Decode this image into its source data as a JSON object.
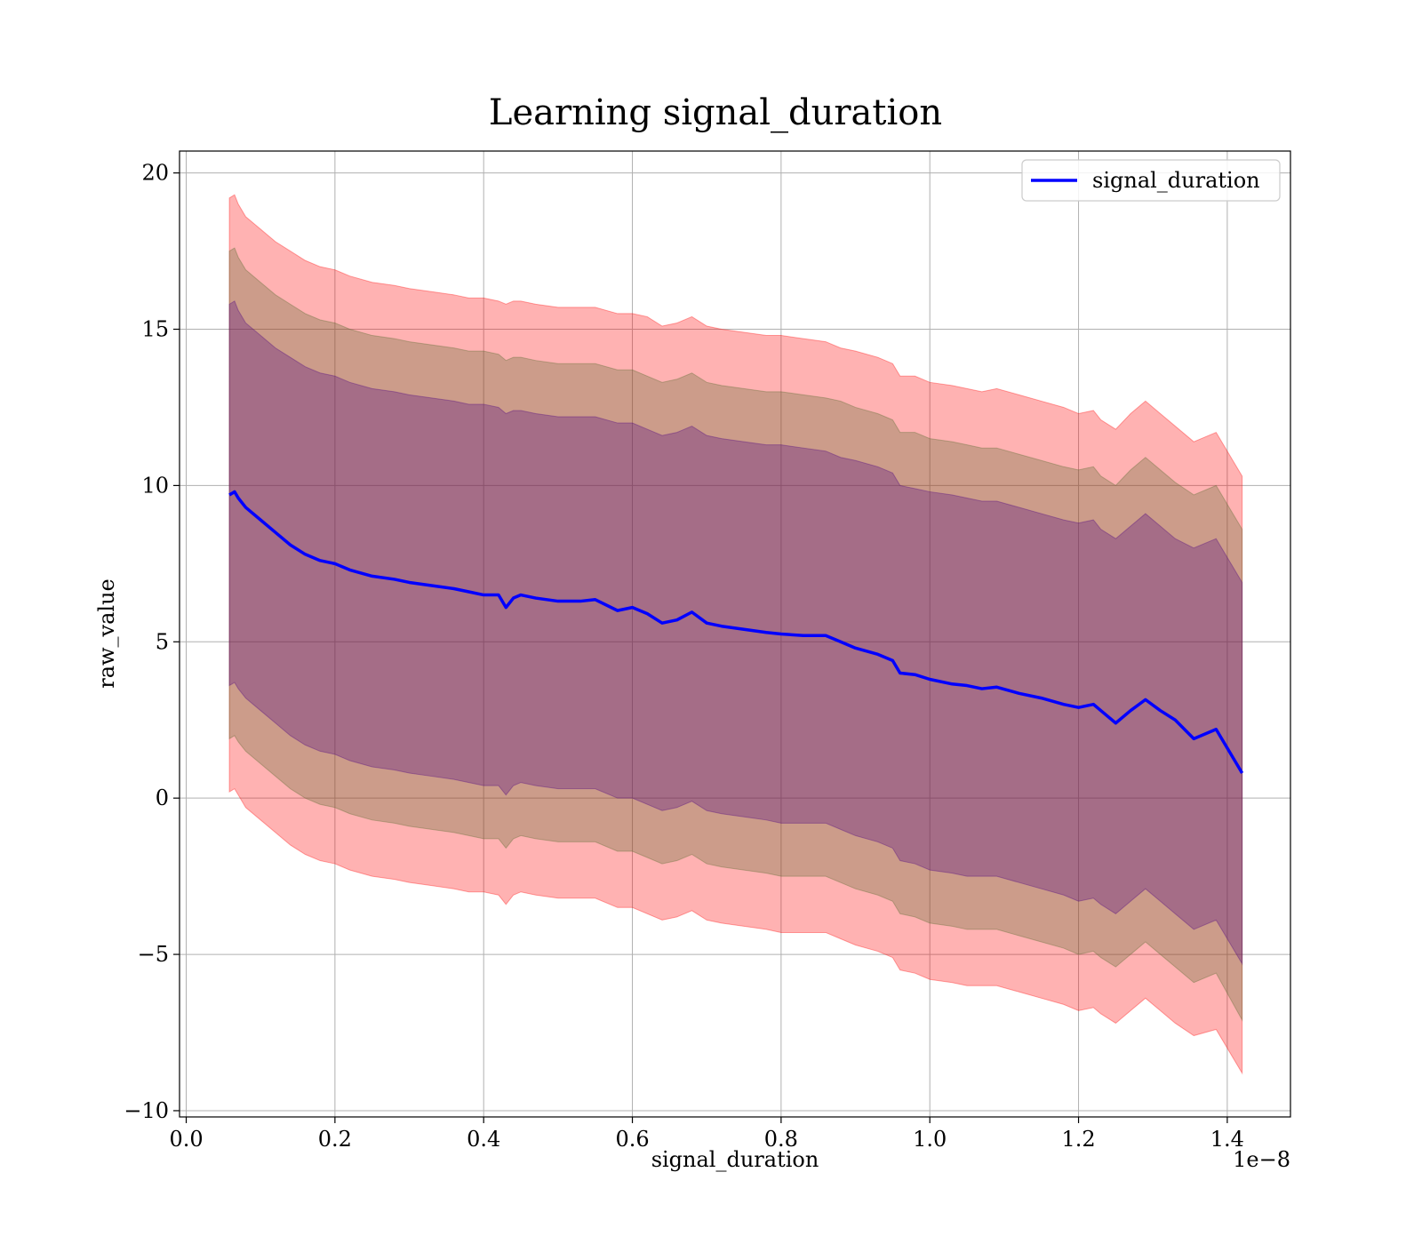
{
  "chart_data": {
    "type": "line",
    "title": "Learning signal_duration",
    "xlabel": "signal_duration",
    "ylabel": "raw_value",
    "x_offset_label": "1e−8",
    "xlim": [
      -0.009,
      1.485
    ],
    "ylim": [
      -10.2,
      20.7
    ],
    "x_ticks": [
      0.0,
      0.2,
      0.4,
      0.6,
      0.8,
      1.0,
      1.2,
      1.4
    ],
    "x_tick_labels": [
      "0.0",
      "0.2",
      "0.4",
      "0.6",
      "0.8",
      "1.0",
      "1.2",
      "1.4"
    ],
    "y_ticks": [
      -10,
      -5,
      0,
      5,
      10,
      15,
      20
    ],
    "y_tick_labels": [
      "−10",
      "−5",
      "0",
      "5",
      "10",
      "15",
      "20"
    ],
    "grid": true,
    "legend_position": "top-right",
    "series": [
      {
        "name": "signal_duration",
        "color": "#0000ff",
        "x": [
          0.058,
          0.065,
          0.07,
          0.08,
          0.1,
          0.12,
          0.14,
          0.16,
          0.18,
          0.2,
          0.22,
          0.25,
          0.28,
          0.3,
          0.33,
          0.36,
          0.38,
          0.4,
          0.42,
          0.43,
          0.44,
          0.45,
          0.47,
          0.5,
          0.53,
          0.55,
          0.58,
          0.6,
          0.62,
          0.64,
          0.66,
          0.68,
          0.7,
          0.72,
          0.75,
          0.78,
          0.8,
          0.83,
          0.86,
          0.88,
          0.9,
          0.93,
          0.95,
          0.96,
          0.98,
          1.0,
          1.03,
          1.05,
          1.07,
          1.09,
          1.12,
          1.15,
          1.18,
          1.2,
          1.22,
          1.23,
          1.25,
          1.27,
          1.29,
          1.31,
          1.33,
          1.355,
          1.385,
          1.42
        ],
        "y": [
          9.7,
          9.8,
          9.6,
          9.3,
          8.9,
          8.5,
          8.1,
          7.8,
          7.6,
          7.5,
          7.3,
          7.1,
          7.0,
          6.9,
          6.8,
          6.7,
          6.6,
          6.5,
          6.5,
          6.1,
          6.4,
          6.5,
          6.4,
          6.3,
          6.3,
          6.35,
          6.0,
          6.1,
          5.9,
          5.6,
          5.7,
          5.95,
          5.6,
          5.5,
          5.4,
          5.3,
          5.25,
          5.2,
          5.2,
          5.0,
          4.8,
          4.6,
          4.4,
          4.0,
          3.95,
          3.8,
          3.65,
          3.6,
          3.5,
          3.55,
          3.35,
          3.2,
          3.0,
          2.9,
          3.0,
          2.8,
          2.4,
          2.8,
          3.15,
          2.8,
          2.5,
          1.9,
          2.2,
          0.8
        ]
      }
    ],
    "bands": [
      {
        "color": "#ff0000",
        "opacity": 0.3,
        "x": [
          0.058,
          0.065,
          0.07,
          0.08,
          0.1,
          0.12,
          0.14,
          0.16,
          0.18,
          0.2,
          0.22,
          0.25,
          0.28,
          0.3,
          0.33,
          0.36,
          0.38,
          0.4,
          0.42,
          0.43,
          0.44,
          0.45,
          0.47,
          0.5,
          0.53,
          0.55,
          0.58,
          0.6,
          0.62,
          0.64,
          0.66,
          0.68,
          0.7,
          0.72,
          0.75,
          0.78,
          0.8,
          0.83,
          0.86,
          0.88,
          0.9,
          0.93,
          0.95,
          0.96,
          0.98,
          1.0,
          1.03,
          1.05,
          1.07,
          1.09,
          1.12,
          1.15,
          1.18,
          1.2,
          1.22,
          1.23,
          1.25,
          1.27,
          1.29,
          1.31,
          1.33,
          1.355,
          1.385,
          1.42
        ],
        "upper": [
          19.2,
          19.3,
          19.0,
          18.6,
          18.2,
          17.8,
          17.5,
          17.2,
          17.0,
          16.9,
          16.7,
          16.5,
          16.4,
          16.3,
          16.2,
          16.1,
          16.0,
          16.0,
          15.9,
          15.8,
          15.9,
          15.9,
          15.8,
          15.7,
          15.7,
          15.7,
          15.5,
          15.5,
          15.4,
          15.1,
          15.2,
          15.4,
          15.1,
          15.0,
          14.9,
          14.8,
          14.8,
          14.7,
          14.6,
          14.4,
          14.3,
          14.1,
          13.9,
          13.5,
          13.5,
          13.3,
          13.2,
          13.1,
          13.0,
          13.1,
          12.9,
          12.7,
          12.5,
          12.3,
          12.4,
          12.1,
          11.8,
          12.3,
          12.7,
          12.3,
          11.9,
          11.4,
          11.7,
          10.3
        ],
        "lower": [
          0.2,
          0.3,
          0.1,
          -0.3,
          -0.7,
          -1.1,
          -1.5,
          -1.8,
          -2.0,
          -2.1,
          -2.3,
          -2.5,
          -2.6,
          -2.7,
          -2.8,
          -2.9,
          -3.0,
          -3.0,
          -3.1,
          -3.4,
          -3.1,
          -3.0,
          -3.1,
          -3.2,
          -3.2,
          -3.2,
          -3.5,
          -3.5,
          -3.7,
          -3.9,
          -3.8,
          -3.6,
          -3.9,
          -4.0,
          -4.1,
          -4.2,
          -4.3,
          -4.3,
          -4.3,
          -4.5,
          -4.7,
          -4.9,
          -5.1,
          -5.5,
          -5.6,
          -5.8,
          -5.9,
          -6.0,
          -6.0,
          -6.0,
          -6.2,
          -6.4,
          -6.6,
          -6.8,
          -6.7,
          -6.9,
          -7.2,
          -6.8,
          -6.4,
          -6.8,
          -7.2,
          -7.6,
          -7.4,
          -8.8
        ]
      },
      {
        "color": "#556b2f",
        "opacity": 0.3,
        "x": [
          0.058,
          0.065,
          0.07,
          0.08,
          0.1,
          0.12,
          0.14,
          0.16,
          0.18,
          0.2,
          0.22,
          0.25,
          0.28,
          0.3,
          0.33,
          0.36,
          0.38,
          0.4,
          0.42,
          0.43,
          0.44,
          0.45,
          0.47,
          0.5,
          0.53,
          0.55,
          0.58,
          0.6,
          0.62,
          0.64,
          0.66,
          0.68,
          0.7,
          0.72,
          0.75,
          0.78,
          0.8,
          0.83,
          0.86,
          0.88,
          0.9,
          0.93,
          0.95,
          0.96,
          0.98,
          1.0,
          1.03,
          1.05,
          1.07,
          1.09,
          1.12,
          1.15,
          1.18,
          1.2,
          1.22,
          1.23,
          1.25,
          1.27,
          1.29,
          1.31,
          1.33,
          1.355,
          1.385,
          1.42
        ],
        "upper": [
          17.5,
          17.6,
          17.3,
          16.9,
          16.5,
          16.1,
          15.8,
          15.5,
          15.3,
          15.2,
          15.0,
          14.8,
          14.7,
          14.6,
          14.5,
          14.4,
          14.3,
          14.3,
          14.2,
          14.0,
          14.1,
          14.1,
          14.0,
          13.9,
          13.9,
          13.9,
          13.7,
          13.7,
          13.5,
          13.3,
          13.4,
          13.6,
          13.3,
          13.2,
          13.1,
          13.0,
          13.0,
          12.9,
          12.8,
          12.7,
          12.5,
          12.3,
          12.1,
          11.7,
          11.7,
          11.5,
          11.4,
          11.3,
          11.2,
          11.2,
          11.0,
          10.8,
          10.6,
          10.5,
          10.6,
          10.3,
          10.0,
          10.5,
          10.9,
          10.5,
          10.1,
          9.7,
          10.0,
          8.6
        ],
        "lower": [
          1.9,
          2.0,
          1.8,
          1.5,
          1.1,
          0.7,
          0.3,
          0.0,
          -0.2,
          -0.3,
          -0.5,
          -0.7,
          -0.8,
          -0.9,
          -1.0,
          -1.1,
          -1.2,
          -1.3,
          -1.3,
          -1.6,
          -1.3,
          -1.2,
          -1.3,
          -1.4,
          -1.4,
          -1.4,
          -1.7,
          -1.7,
          -1.9,
          -2.1,
          -2.0,
          -1.8,
          -2.1,
          -2.2,
          -2.3,
          -2.4,
          -2.5,
          -2.5,
          -2.5,
          -2.7,
          -2.9,
          -3.1,
          -3.3,
          -3.7,
          -3.8,
          -4.0,
          -4.1,
          -4.2,
          -4.2,
          -4.2,
          -4.4,
          -4.6,
          -4.8,
          -5.0,
          -4.9,
          -5.1,
          -5.4,
          -5.0,
          -4.6,
          -5.0,
          -5.4,
          -5.9,
          -5.6,
          -7.1
        ]
      },
      {
        "color": "#4b0082",
        "opacity": 0.3,
        "x": [
          0.058,
          0.065,
          0.07,
          0.08,
          0.1,
          0.12,
          0.14,
          0.16,
          0.18,
          0.2,
          0.22,
          0.25,
          0.28,
          0.3,
          0.33,
          0.36,
          0.38,
          0.4,
          0.42,
          0.43,
          0.44,
          0.45,
          0.47,
          0.5,
          0.53,
          0.55,
          0.58,
          0.6,
          0.62,
          0.64,
          0.66,
          0.68,
          0.7,
          0.72,
          0.75,
          0.78,
          0.8,
          0.83,
          0.86,
          0.88,
          0.9,
          0.93,
          0.95,
          0.96,
          0.98,
          1.0,
          1.03,
          1.05,
          1.07,
          1.09,
          1.12,
          1.15,
          1.18,
          1.2,
          1.22,
          1.23,
          1.25,
          1.27,
          1.29,
          1.31,
          1.33,
          1.355,
          1.385,
          1.42
        ],
        "upper": [
          15.8,
          15.9,
          15.6,
          15.2,
          14.8,
          14.4,
          14.1,
          13.8,
          13.6,
          13.5,
          13.3,
          13.1,
          13.0,
          12.9,
          12.8,
          12.7,
          12.6,
          12.6,
          12.5,
          12.3,
          12.4,
          12.4,
          12.3,
          12.2,
          12.2,
          12.2,
          12.0,
          12.0,
          11.8,
          11.6,
          11.7,
          11.9,
          11.6,
          11.5,
          11.4,
          11.3,
          11.3,
          11.2,
          11.1,
          10.9,
          10.8,
          10.6,
          10.4,
          10.0,
          9.9,
          9.8,
          9.7,
          9.6,
          9.5,
          9.5,
          9.3,
          9.1,
          8.9,
          8.8,
          8.9,
          8.6,
          8.3,
          8.7,
          9.1,
          8.7,
          8.3,
          8.0,
          8.3,
          6.9
        ],
        "lower": [
          3.6,
          3.7,
          3.5,
          3.2,
          2.8,
          2.4,
          2.0,
          1.7,
          1.5,
          1.4,
          1.2,
          1.0,
          0.9,
          0.8,
          0.7,
          0.6,
          0.5,
          0.4,
          0.4,
          0.1,
          0.4,
          0.5,
          0.4,
          0.3,
          0.3,
          0.3,
          0.0,
          0.0,
          -0.2,
          -0.4,
          -0.3,
          -0.1,
          -0.4,
          -0.5,
          -0.6,
          -0.7,
          -0.8,
          -0.8,
          -0.8,
          -1.0,
          -1.2,
          -1.4,
          -1.6,
          -2.0,
          -2.1,
          -2.3,
          -2.4,
          -2.5,
          -2.5,
          -2.5,
          -2.7,
          -2.9,
          -3.1,
          -3.3,
          -3.2,
          -3.4,
          -3.7,
          -3.3,
          -2.9,
          -3.3,
          -3.7,
          -4.2,
          -3.9,
          -5.3
        ]
      }
    ]
  }
}
